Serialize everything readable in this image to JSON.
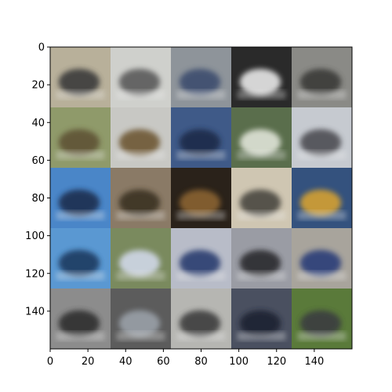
{
  "chart_data": {
    "type": "image",
    "title": "",
    "xlabel": "",
    "ylabel": "",
    "xlim": [
      0,
      160
    ],
    "ylim": [
      160,
      0
    ],
    "x_ticks": [
      0,
      20,
      40,
      60,
      80,
      100,
      120,
      140
    ],
    "y_ticks": [
      0,
      20,
      40,
      60,
      80,
      100,
      120,
      140
    ],
    "grid": "5x5 tiles of generated images, each 32x32 px",
    "grid_rows": 5,
    "grid_cols": 5,
    "tiles": [
      [
        "#b8b09a",
        "#cfd0cc",
        "#8e949a",
        "#2a2a2a",
        "#8a8a86"
      ],
      [
        "#8f9a6a",
        "#c8c8c4",
        "#3f5a88",
        "#5a6e4c",
        "#c6cad0"
      ],
      [
        "#4a86c8",
        "#8a7a66",
        "#2a221a",
        "#cfc6b2",
        "#34527e"
      ],
      [
        "#5a98d2",
        "#7a8a5e",
        "#b8bcc8",
        "#9a9ca4",
        "#a8a49c"
      ],
      [
        "#8c8c8c",
        "#5c5c5c",
        "#b6b6b2",
        "#4a5060",
        "#5a7a3a"
      ]
    ],
    "tile_features": [
      [
        "#3a3a3a",
        "#5a5a5a",
        "#3c4e6e",
        "#e8e8e8",
        "#3a3a38"
      ],
      [
        "#5e5236",
        "#6e5834",
        "#1e2a48",
        "#e0e4d8",
        "#4e4e52"
      ],
      [
        "#1a2e50",
        "#3a3024",
        "#8a6432",
        "#4a4640",
        "#d4a030"
      ],
      [
        "#1c3a60",
        "#d0d8e8",
        "#2a3c70",
        "#2a2a2e",
        "#2c3e78"
      ],
      [
        "#2e2e2e",
        "#9aa0a8",
        "#3c3c3c",
        "#1c2030",
        "#3a3e40"
      ]
    ]
  }
}
